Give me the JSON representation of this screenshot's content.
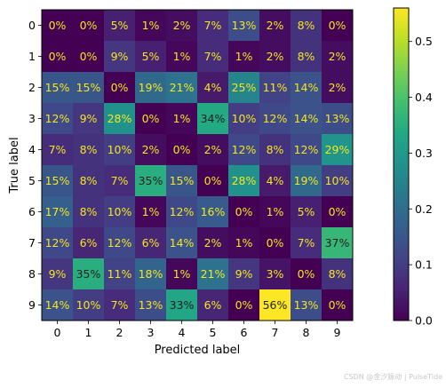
{
  "chart_data": {
    "type": "heatmap",
    "title": "",
    "xlabel": "Predicted label",
    "ylabel": "True label",
    "x_categories": [
      "0",
      "1",
      "2",
      "3",
      "4",
      "5",
      "6",
      "7",
      "8",
      "9"
    ],
    "y_categories": [
      "0",
      "1",
      "2",
      "3",
      "4",
      "5",
      "6",
      "7",
      "8",
      "9"
    ],
    "values": [
      [
        0,
        0,
        5,
        1,
        2,
        7,
        13,
        2,
        8,
        0
      ],
      [
        0,
        0,
        9,
        5,
        1,
        7,
        1,
        2,
        8,
        2
      ],
      [
        15,
        15,
        0,
        19,
        21,
        4,
        25,
        11,
        14,
        2
      ],
      [
        12,
        9,
        28,
        0,
        1,
        34,
        10,
        12,
        14,
        13
      ],
      [
        7,
        8,
        10,
        2,
        0,
        2,
        12,
        8,
        12,
        29
      ],
      [
        15,
        8,
        7,
        35,
        15,
        0,
        28,
        4,
        19,
        10
      ],
      [
        17,
        8,
        10,
        1,
        12,
        16,
        0,
        1,
        5,
        0
      ],
      [
        12,
        6,
        12,
        6,
        14,
        2,
        1,
        0,
        7,
        37
      ],
      [
        9,
        35,
        11,
        18,
        1,
        21,
        9,
        3,
        0,
        8
      ],
      [
        14,
        10,
        7,
        13,
        33,
        6,
        0,
        56,
        13,
        0
      ]
    ],
    "value_format": "percent",
    "colormap": "viridis",
    "color_range": [
      0,
      0.56
    ],
    "colorbar_ticks": [
      "0.0",
      "0.1",
      "0.2",
      "0.3",
      "0.4",
      "0.5"
    ],
    "colorbar_tick_values": [
      0,
      0.1,
      0.2,
      0.3,
      0.4,
      0.5
    ],
    "text_color_light": "#f5e61e",
    "text_color_dark": "#1f1f1f"
  },
  "watermark": "CSDN @金汐脉动 | PulseTide"
}
